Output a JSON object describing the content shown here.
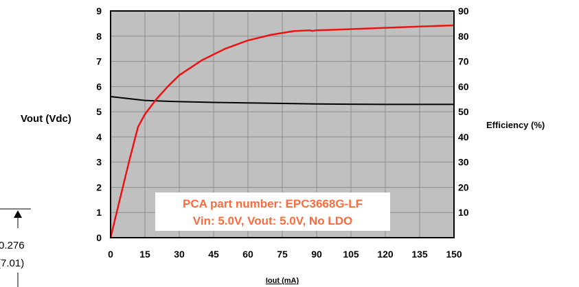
{
  "chart_data": {
    "type": "line",
    "title": "",
    "xlabel": "Iout (mA)",
    "ylabel_left": "Vout  (Vdc)",
    "ylabel_right": "Efficiency (%)",
    "xlim": [
      0,
      150
    ],
    "ylim_left": [
      0,
      9
    ],
    "ylim_right": [
      0,
      90
    ],
    "grid": true,
    "x_ticks": [
      "0",
      "15",
      "30",
      "45",
      "60",
      "75",
      "90",
      "105",
      "120",
      "135",
      "150"
    ],
    "y_left_ticks": [
      "0",
      "1",
      "2",
      "3",
      "4",
      "5",
      "6",
      "7",
      "8",
      "9"
    ],
    "y_right_ticks": [
      "10",
      "20",
      "30",
      "40",
      "50",
      "60",
      "70",
      "80",
      "90"
    ],
    "series": [
      {
        "axis": "left",
        "color": "#000000",
        "x": [
          0,
          5,
          10,
          15,
          20,
          30,
          45,
          60,
          75,
          90,
          105,
          120,
          135,
          150
        ],
        "y": [
          5.6,
          5.55,
          5.5,
          5.45,
          5.43,
          5.4,
          5.37,
          5.35,
          5.33,
          5.31,
          5.3,
          5.29,
          5.29,
          5.29
        ]
      },
      {
        "axis": "right",
        "color": "#ee1111",
        "x": [
          0,
          4,
          8,
          10,
          12,
          15,
          20,
          25,
          30,
          40,
          50,
          60,
          70,
          80,
          87,
          88,
          90,
          105,
          120,
          135,
          150
        ],
        "y": [
          0,
          15,
          30,
          37,
          44,
          49,
          55,
          60,
          64.5,
          70.5,
          75,
          78.3,
          80.5,
          82,
          82.3,
          82.1,
          82.3,
          82.8,
          83.3,
          83.8,
          84.3
        ]
      }
    ],
    "annotations": [
      {
        "text": "PCA part number: EPC3668G-LF",
        "color": "#ff6a3c"
      },
      {
        "text": "Vin: 5.0V, Vout: 5.0V,  No LDO",
        "color": "#ff6a3c"
      }
    ]
  },
  "dimension_callout": {
    "line1": "0.276",
    "line2": "(7.01)"
  }
}
